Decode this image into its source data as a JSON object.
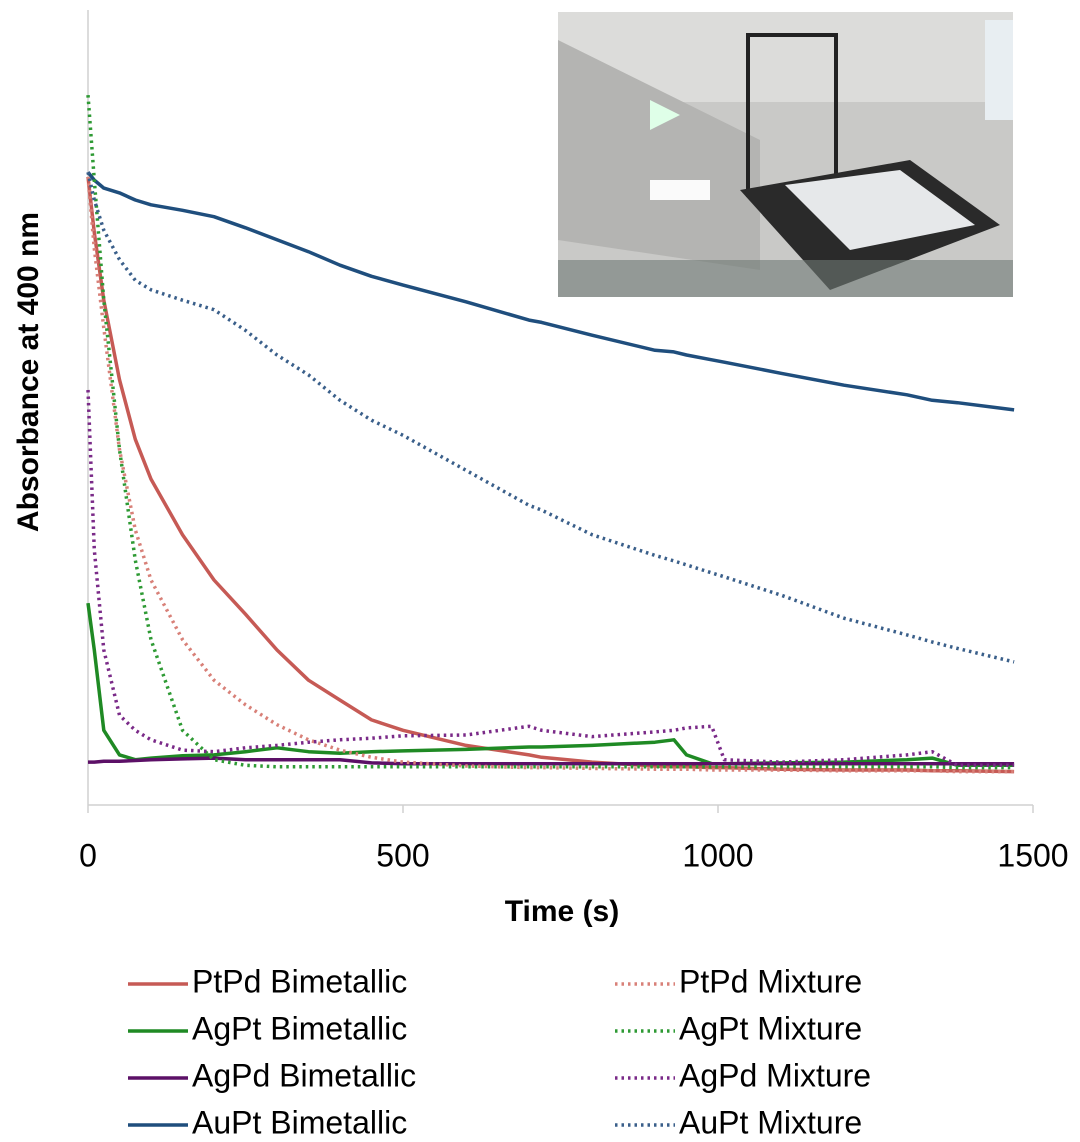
{
  "chart_data": {
    "type": "line",
    "x_label": "Time (s)",
    "y_label": "Absorbance at 400 nm",
    "x": [
      0,
      10,
      25,
      50,
      75,
      100,
      150,
      200,
      250,
      300,
      350,
      400,
      450,
      500,
      600,
      700,
      720,
      800,
      900,
      930,
      950,
      990,
      1010,
      1100,
      1200,
      1300,
      1340,
      1380,
      1470
    ],
    "xlim": [
      0,
      1500
    ],
    "xticks": [
      0,
      500,
      1000,
      1500
    ],
    "ylim": [
      0,
      1
    ],
    "series": [
      {
        "name": "PtPd Bimetallic",
        "color": "#c65a55",
        "dash": "solid",
        "values": [
          0.79,
          0.72,
          0.635,
          0.535,
          0.46,
          0.41,
          0.34,
          0.283,
          0.24,
          0.195,
          0.157,
          0.132,
          0.107,
          0.094,
          0.075,
          0.063,
          0.06,
          0.054,
          0.049,
          0.048,
          0.048,
          0.047,
          0.047,
          0.045,
          0.044,
          0.044,
          0.043,
          0.043,
          0.042
        ]
      },
      {
        "name": "AgPt Bimetallic",
        "color": "#1f8a24",
        "dash": "solid",
        "values": [
          0.254,
          0.195,
          0.094,
          0.063,
          0.057,
          0.059,
          0.062,
          0.063,
          0.067,
          0.072,
          0.067,
          0.065,
          0.067,
          0.068,
          0.07,
          0.073,
          0.073,
          0.075,
          0.079,
          0.082,
          0.063,
          0.052,
          0.052,
          0.053,
          0.054,
          0.057,
          0.059,
          0.05,
          0.05
        ]
      },
      {
        "name": "AgPd Bimetallic",
        "color": "#5c1067",
        "dash": "solid",
        "values": [
          0.054,
          0.054,
          0.055,
          0.055,
          0.056,
          0.057,
          0.058,
          0.059,
          0.057,
          0.057,
          0.057,
          0.057,
          0.053,
          0.052,
          0.052,
          0.052,
          0.052,
          0.052,
          0.052,
          0.052,
          0.052,
          0.052,
          0.052,
          0.052,
          0.052,
          0.052,
          0.052,
          0.052,
          0.052
        ]
      },
      {
        "name": "AuPt Bimetallic",
        "color": "#1f4e7d",
        "dash": "solid",
        "values": [
          0.796,
          0.786,
          0.776,
          0.77,
          0.761,
          0.755,
          0.748,
          0.74,
          0.726,
          0.711,
          0.696,
          0.679,
          0.665,
          0.654,
          0.633,
          0.61,
          0.607,
          0.591,
          0.572,
          0.57,
          0.566,
          0.56,
          0.557,
          0.543,
          0.528,
          0.516,
          0.509,
          0.506,
          0.497
        ]
      },
      {
        "name": "PtPd Mixture",
        "color": "#d88078",
        "dash": "dotted",
        "values": [
          0.79,
          0.7,
          0.6,
          0.447,
          0.346,
          0.283,
          0.208,
          0.157,
          0.126,
          0.101,
          0.082,
          0.069,
          0.06,
          0.054,
          0.049,
          0.047,
          0.047,
          0.046,
          0.045,
          0.045,
          0.045,
          0.044,
          0.044,
          0.044,
          0.043,
          0.043,
          0.043,
          0.042,
          0.042
        ]
      },
      {
        "name": "AgPt Mixture",
        "color": "#2e9a34",
        "dash": "dotted",
        "values": [
          0.893,
          0.786,
          0.635,
          0.447,
          0.308,
          0.208,
          0.094,
          0.057,
          0.05,
          0.048,
          0.048,
          0.048,
          0.048,
          0.048,
          0.048,
          0.048,
          0.048,
          0.048,
          0.048,
          0.048,
          0.048,
          0.048,
          0.048,
          0.048,
          0.048,
          0.048,
          0.048,
          0.047,
          0.047
        ]
      },
      {
        "name": "AgPd Mixture",
        "color": "#7a2a88",
        "dash": "dotted",
        "values": [
          0.522,
          0.321,
          0.195,
          0.113,
          0.094,
          0.082,
          0.069,
          0.067,
          0.072,
          0.075,
          0.079,
          0.082,
          0.084,
          0.087,
          0.088,
          0.099,
          0.094,
          0.086,
          0.092,
          0.094,
          0.097,
          0.099,
          0.057,
          0.054,
          0.057,
          0.063,
          0.067,
          0.05,
          0.05
        ]
      },
      {
        "name": "AuPt Mixture",
        "color": "#3a5f8a",
        "dash": "dotted",
        "values": [
          0.796,
          0.761,
          0.723,
          0.686,
          0.66,
          0.648,
          0.635,
          0.623,
          0.597,
          0.566,
          0.541,
          0.509,
          0.484,
          0.465,
          0.421,
          0.377,
          0.371,
          0.34,
          0.314,
          0.307,
          0.302,
          0.292,
          0.287,
          0.264,
          0.235,
          0.214,
          0.205,
          0.197,
          0.18
        ]
      }
    ]
  }
}
